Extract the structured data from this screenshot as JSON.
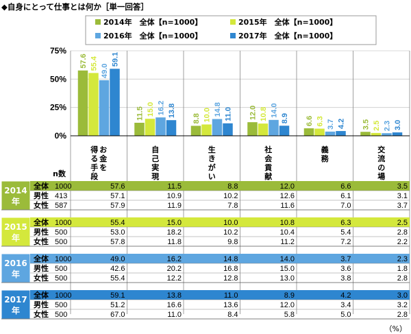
{
  "title": "◆自身にとって仕事とは何か［単一回答］",
  "unit": "（%）",
  "n_header": "n数",
  "colors": {
    "2014": "#9BBB3A",
    "2015": "#D4E83C",
    "2016": "#5EA6E0",
    "2017": "#2E86D0"
  },
  "chart_data": {
    "type": "bar",
    "categories": [
      "お金を得る手段",
      "自己実現",
      "生きがい",
      "社会貢献",
      "義務",
      "交流の場"
    ],
    "yticks": [
      "75%",
      "50%",
      "25%",
      "0%"
    ],
    "ylim": [
      0,
      75
    ],
    "series": [
      {
        "name": "2014年　全体【n=1000】",
        "year": "2014",
        "values": [
          57.6,
          11.5,
          8.8,
          12.0,
          6.6,
          3.5
        ],
        "labels": [
          "57.6",
          "11.5",
          "8.8",
          "12.0",
          "6.6",
          "3.5"
        ]
      },
      {
        "name": "2015年　全体【n=1000】",
        "year": "2015",
        "values": [
          55.4,
          15.0,
          10.0,
          10.8,
          6.3,
          2.5
        ],
        "labels": [
          "55.4",
          "15.0",
          "10.0",
          "10.8",
          "6.3",
          "2.5"
        ]
      },
      {
        "name": "2016年　全体【n=1000】",
        "year": "2016",
        "values": [
          49.0,
          16.2,
          14.8,
          14.0,
          3.7,
          2.3
        ],
        "labels": [
          "49.0",
          "16.2",
          "14.8",
          "14.0",
          "3.7",
          "2.3"
        ]
      },
      {
        "name": "2017年　全体【n=1000】",
        "year": "2017",
        "values": [
          59.1,
          13.8,
          11.0,
          8.9,
          4.2,
          3.0
        ],
        "labels": [
          "59.1",
          "13.8",
          "11.0",
          "8.9",
          "4.2",
          "3.0"
        ]
      }
    ]
  },
  "table": [
    {
      "year": "2014",
      "year_label": "年",
      "rows": [
        {
          "label": "全体",
          "n": "1000",
          "values": [
            "57.6",
            "11.5",
            "8.8",
            "12.0",
            "6.6",
            "3.5"
          ]
        },
        {
          "label": "男性",
          "n": "413",
          "values": [
            "57.1",
            "10.9",
            "10.2",
            "12.6",
            "6.1",
            "3.1"
          ]
        },
        {
          "label": "女性",
          "n": "587",
          "values": [
            "57.9",
            "11.9",
            "7.8",
            "11.6",
            "7.0",
            "3.7"
          ]
        }
      ]
    },
    {
      "year": "2015",
      "year_label": "年",
      "rows": [
        {
          "label": "全体",
          "n": "1000",
          "values": [
            "55.4",
            "15.0",
            "10.0",
            "10.8",
            "6.3",
            "2.5"
          ]
        },
        {
          "label": "男性",
          "n": "500",
          "values": [
            "53.0",
            "18.2",
            "10.2",
            "10.4",
            "5.4",
            "2.8"
          ]
        },
        {
          "label": "女性",
          "n": "500",
          "values": [
            "57.8",
            "11.8",
            "9.8",
            "11.2",
            "7.2",
            "2.2"
          ]
        }
      ]
    },
    {
      "year": "2016",
      "year_label": "年",
      "rows": [
        {
          "label": "全体",
          "n": "1000",
          "values": [
            "49.0",
            "16.2",
            "14.8",
            "14.0",
            "3.7",
            "2.3"
          ]
        },
        {
          "label": "男性",
          "n": "500",
          "values": [
            "42.6",
            "20.2",
            "16.8",
            "15.0",
            "3.6",
            "1.8"
          ]
        },
        {
          "label": "女性",
          "n": "500",
          "values": [
            "55.4",
            "12.2",
            "12.8",
            "13.0",
            "3.8",
            "2.8"
          ]
        }
      ]
    },
    {
      "year": "2017",
      "year_label": "年",
      "rows": [
        {
          "label": "全体",
          "n": "1000",
          "values": [
            "59.1",
            "13.8",
            "11.0",
            "8.9",
            "4.2",
            "3.0"
          ]
        },
        {
          "label": "男性",
          "n": "500",
          "values": [
            "51.2",
            "16.6",
            "13.6",
            "12.0",
            "3.4",
            "3.2"
          ]
        },
        {
          "label": "女性",
          "n": "500",
          "values": [
            "67.0",
            "11.0",
            "8.4",
            "5.8",
            "5.0",
            "2.8"
          ]
        }
      ]
    }
  ]
}
